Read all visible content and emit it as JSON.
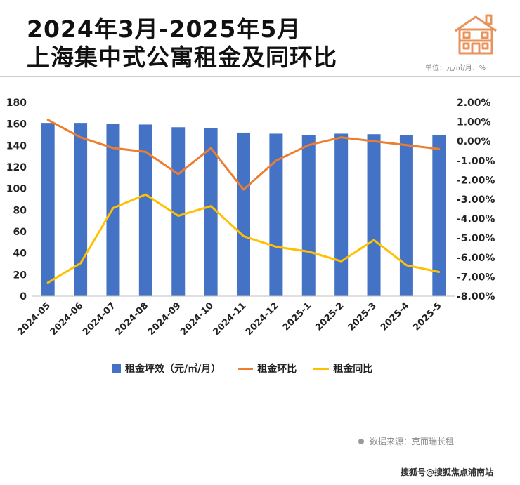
{
  "header": {
    "title_line1": "2024年3月-2025年5月",
    "title_line2": "上海集中式公寓租金及同环比",
    "unit": "单位：元/㎡/月、%"
  },
  "footer": {
    "source": "数据来源：克而瑞长租",
    "credit": "搜狐号@搜狐焦点浦南站"
  },
  "chart_data": {
    "type": "bar",
    "categories": [
      "2024-05",
      "2024-06",
      "2024-07",
      "2024-08",
      "2024-09",
      "2024-10",
      "2024-11",
      "2024-12",
      "2025-1",
      "2025-2",
      "2025-3",
      "2025-4",
      "2025-5"
    ],
    "left_axis": {
      "min": 0,
      "max": 180,
      "step": 20,
      "ticks": [
        "0",
        "20",
        "40",
        "60",
        "80",
        "100",
        "120",
        "140",
        "160",
        "180"
      ]
    },
    "right_axis": {
      "min": -8,
      "max": 2,
      "step": 1,
      "ticks": [
        "-8.00%",
        "-7.00%",
        "-6.00%",
        "-5.00%",
        "-4.00%",
        "-3.00%",
        "-2.00%",
        "-1.00%",
        "0.00%",
        "1.00%",
        "2.00%"
      ]
    },
    "series": [
      {
        "name": "租金坪效（元/㎡/月）",
        "type": "bar",
        "axis": "left",
        "color": "#4472C4",
        "values": [
          161,
          161,
          160,
          159.5,
          157,
          156,
          152,
          151,
          150,
          151,
          150.5,
          150,
          149.5
        ]
      },
      {
        "name": "租金环比",
        "type": "line",
        "axis": "right",
        "color": "#ED7D31",
        "values": [
          1.1,
          0.2,
          -0.35,
          -0.55,
          -1.7,
          -0.35,
          -2.5,
          -1.0,
          -0.2,
          0.2,
          0.0,
          -0.2,
          -0.4
        ]
      },
      {
        "name": "租金同比",
        "type": "line",
        "axis": "right",
        "color": "#FFC000",
        "values": [
          -7.3,
          -6.3,
          -3.45,
          -2.75,
          -3.85,
          -3.35,
          -4.9,
          -5.45,
          -5.7,
          -6.2,
          -5.1,
          -6.4,
          -6.75
        ]
      }
    ],
    "legend_position": "bottom",
    "grid": false
  }
}
